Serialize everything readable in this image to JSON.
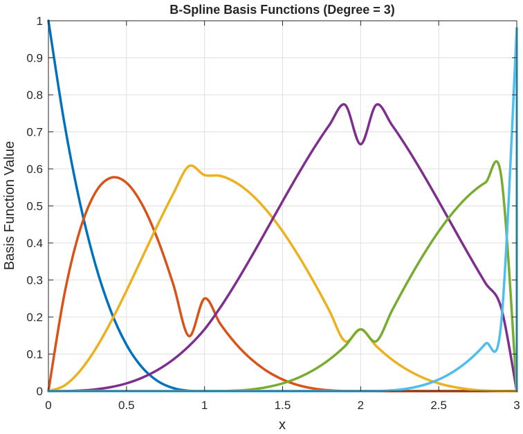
{
  "chart_data": {
    "type": "line",
    "title": "B-Spline Basis Functions (Degree = 3)",
    "xlabel": "x",
    "ylabel": "Basis Function Value",
    "xlim": [
      0,
      3
    ],
    "ylim": [
      0,
      1
    ],
    "xticks": [
      0,
      0.5,
      1,
      1.5,
      2,
      2.5,
      3
    ],
    "xtick_labels": [
      "0",
      "0.5",
      "1",
      "1.5",
      "2",
      "2.5",
      "3"
    ],
    "yticks": [
      0,
      0.1,
      0.2,
      0.3,
      0.4,
      0.5,
      0.6,
      0.7,
      0.8,
      0.9,
      1
    ],
    "ytick_labels": [
      "0",
      "0.1",
      "0.2",
      "0.3",
      "0.4",
      "0.5",
      "0.6",
      "0.7",
      "0.8",
      "0.9",
      "1"
    ],
    "grid": true,
    "legend": "none",
    "x": [
      0,
      0.1,
      0.2,
      0.3,
      0.4,
      0.5,
      0.6,
      0.7,
      0.8,
      0.9,
      1,
      1.1,
      1.2,
      1.3,
      1.4,
      1.5,
      1.6,
      1.7,
      1.8,
      1.9,
      2,
      2.1,
      2.2,
      2.3,
      2.4,
      2.5,
      2.6,
      2.7,
      2.8,
      2.9,
      3
    ],
    "series": [
      {
        "color": "#0072BD",
        "values": [
          1,
          0.729,
          0.512,
          0.343,
          0.216,
          0.125,
          0.064,
          0.027,
          0.008,
          0.001,
          0,
          0,
          0,
          0,
          0,
          0,
          0,
          0,
          0,
          0,
          0,
          0,
          0,
          0,
          0,
          0,
          0,
          0,
          0,
          0,
          0
        ]
      },
      {
        "color": "#D95319",
        "values": [
          0,
          0.2565,
          0.432,
          0.5355,
          0.576,
          0.5625,
          0.504,
          0.4095,
          0.288,
          0.1485,
          0.25,
          0.1822,
          0.128,
          0.0858,
          0.054,
          0.0313,
          0.016,
          0.0068,
          0.002,
          0.0003,
          0,
          0,
          0,
          0,
          0,
          0,
          0,
          0,
          0,
          0,
          0
        ]
      },
      {
        "color": "#EDB120",
        "values": [
          0,
          0.0142,
          0.0533,
          0.1125,
          0.1867,
          0.2708,
          0.36,
          0.4492,
          0.5333,
          0.6075,
          0.5833,
          0.5813,
          0.5633,
          0.5313,
          0.4867,
          0.4313,
          0.3667,
          0.2946,
          0.2167,
          0.1346,
          0.1667,
          0.1215,
          0.0853,
          0.0572,
          0.036,
          0.0208,
          0.0107,
          0.0045,
          0.0013,
          0.0002,
          0
        ]
      },
      {
        "color": "#7E2F8E",
        "values": [
          0,
          0.0002,
          0.0013,
          0.0045,
          0.0107,
          0.0208,
          0.036,
          0.0572,
          0.0853,
          0.1215,
          0.1667,
          0.2252,
          0.2913,
          0.3628,
          0.4373,
          0.5125,
          0.586,
          0.6555,
          0.7187,
          0.7732,
          0.6667,
          0.7732,
          0.7187,
          0.6555,
          0.586,
          0.5125,
          0.4373,
          0.3628,
          0.2913,
          0.2252,
          0
        ]
      },
      {
        "color": "#77AC30",
        "values": [
          0,
          0,
          0,
          0,
          0,
          0,
          0,
          0,
          0,
          0,
          0,
          0.0002,
          0.0013,
          0.0045,
          0.0107,
          0.0208,
          0.036,
          0.0572,
          0.0853,
          0.1215,
          0.1667,
          0.1346,
          0.2167,
          0.2946,
          0.3667,
          0.4313,
          0.4867,
          0.5313,
          0.5633,
          0.5813,
          0
        ]
      },
      {
        "color": "#4DBEEE",
        "values": [
          0,
          0,
          0,
          0,
          0,
          0,
          0,
          0,
          0,
          0,
          0,
          0,
          0,
          0,
          0,
          0,
          0,
          0,
          0,
          0,
          0,
          0.0003,
          0.002,
          0.0068,
          0.016,
          0.0313,
          0.054,
          0.0858,
          0.128,
          0.1822,
          0.98
        ]
      }
    ]
  }
}
